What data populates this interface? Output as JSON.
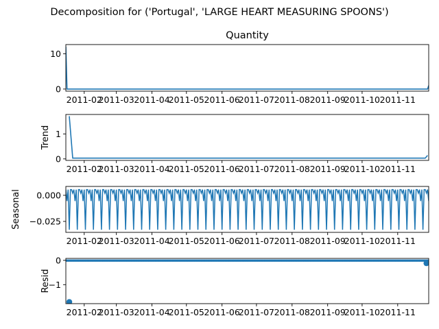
{
  "chart_data": {
    "type": "line",
    "suptitle": "Decomposition for ('Portugal', 'LARGE HEART MEASURING SPOONS')",
    "x_range": [
      "2011-01-16",
      "2011-11-28"
    ],
    "x_ticks": [
      "2011-02",
      "2011-03",
      "2011-04",
      "2011-05",
      "2011-06",
      "2011-07",
      "2011-08",
      "2011-09",
      "2011-10",
      "2011-11"
    ],
    "panels": [
      {
        "key": "observed",
        "title": "Quantity",
        "ylabel": "",
        "style": "line",
        "color": "#1f77b4",
        "ylim": [
          -0.6,
          12.6
        ],
        "yticks": [
          0,
          10
        ],
        "series": [
          {
            "x": "2011-01-16",
            "y": 12
          },
          {
            "x": "2011-01-17",
            "y": 0
          },
          {
            "x": "2011-11-27",
            "y": 0
          },
          {
            "x": "2011-11-28",
            "y": 1
          }
        ]
      },
      {
        "key": "trend",
        "title": "",
        "ylabel": "Trend",
        "style": "line",
        "color": "#1f77b4",
        "ylim": [
          -0.06,
          1.78
        ],
        "yticks": [
          0,
          1
        ],
        "series": [
          {
            "x": "2011-01-19",
            "y": 1.71
          },
          {
            "x": "2011-01-22",
            "y": 0.03
          },
          {
            "x": "2011-11-25",
            "y": 0.03
          },
          {
            "x": "2011-11-27",
            "y": 0.14
          }
        ]
      },
      {
        "key": "seasonal",
        "title": "",
        "ylabel": "Seasonal",
        "style": "seasonal",
        "color": "#1f77b4",
        "ylim": [
          -0.0355,
          0.0085
        ],
        "yticks": [
          0.0,
          -0.025
        ],
        "ytick_labels": [
          "0.000",
          "−0.025"
        ],
        "period_days": 7,
        "pattern": [
          0.0055,
          -0.0055,
          0.0055,
          -0.033,
          0.0055,
          0.0055,
          0.002
        ]
      },
      {
        "key": "resid",
        "title": "",
        "ylabel": "Resid",
        "style": "scatter",
        "color": "#1f77b4",
        "ylim": [
          -1.78,
          0.08
        ],
        "yticks": [
          0,
          -1
        ],
        "ytick_labels": [
          "0",
          "−1"
        ],
        "points": [
          {
            "x": "2011-01-19",
            "y": -1.71
          },
          {
            "x": "2011-11-26",
            "y": -0.12
          }
        ],
        "baseline_y": -0.01
      }
    ]
  }
}
